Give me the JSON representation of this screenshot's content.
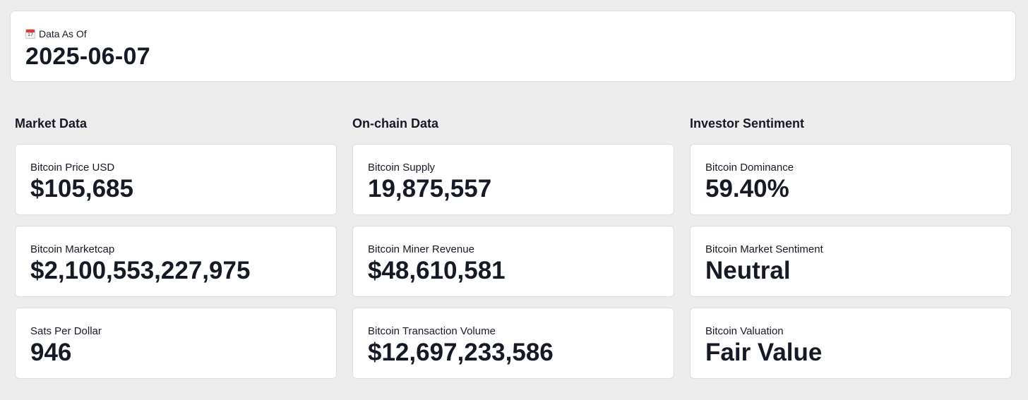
{
  "header": {
    "icon": "calendar-icon",
    "icon_day": "17",
    "label": "Data As Of",
    "date": "2025-06-07"
  },
  "sections": [
    {
      "title": "Market Data",
      "cards": [
        {
          "label": "Bitcoin Price USD",
          "value": "$105,685"
        },
        {
          "label": "Bitcoin Marketcap",
          "value": "$2,100,553,227,975"
        },
        {
          "label": "Sats Per Dollar",
          "value": "946"
        }
      ]
    },
    {
      "title": "On-chain Data",
      "cards": [
        {
          "label": "Bitcoin Supply",
          "value": "19,875,557"
        },
        {
          "label": "Bitcoin Miner Revenue",
          "value": "$48,610,581"
        },
        {
          "label": "Bitcoin Transaction Volume",
          "value": "$12,697,233,586"
        }
      ]
    },
    {
      "title": "Investor Sentiment",
      "cards": [
        {
          "label": "Bitcoin Dominance",
          "value": "59.40%"
        },
        {
          "label": "Bitcoin Market Sentiment",
          "value": "Neutral"
        },
        {
          "label": "Bitcoin Valuation",
          "value": "Fair Value"
        }
      ]
    }
  ],
  "colors": {
    "background": "#ededed",
    "card": "#ffffff",
    "text": "#161a26",
    "border": "#dedede"
  }
}
